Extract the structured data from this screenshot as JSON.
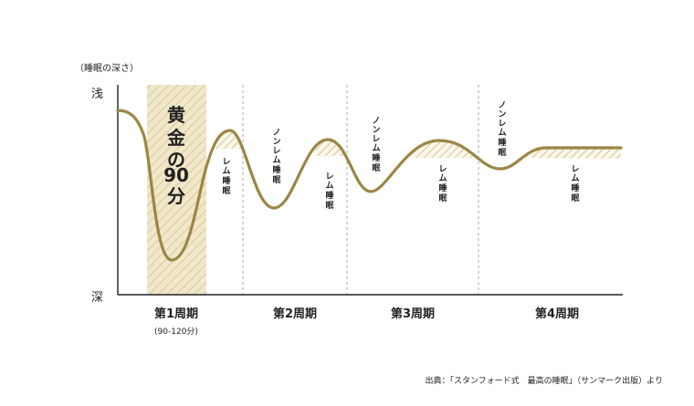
{
  "axis": {
    "y_label": "（睡眠の深さ）",
    "shallow": "浅",
    "deep": "深"
  },
  "golden": {
    "chars": [
      "黄",
      "金",
      "の",
      "90",
      "分"
    ]
  },
  "stage_labels": {
    "rem": [
      "レ",
      "ム",
      "睡",
      "眠"
    ],
    "nonrem": [
      "ノ",
      "ン",
      "レ",
      "ム",
      "睡",
      "眠"
    ]
  },
  "cycles": [
    {
      "label": "第1周期",
      "sub": "(90-120分)"
    },
    {
      "label": "第2周期",
      "sub": ""
    },
    {
      "label": "第3周期",
      "sub": ""
    },
    {
      "label": "第4周期",
      "sub": ""
    }
  ],
  "source": "出典：「スタンフォード式　最高の睡眠」（サンマーク出版）より",
  "colors": {
    "curve": "#9c8646",
    "hatch": "#d8c89a",
    "golden_bg": "#efe5c5",
    "axis": "#222222",
    "divider": "#aaaaaa"
  }
}
